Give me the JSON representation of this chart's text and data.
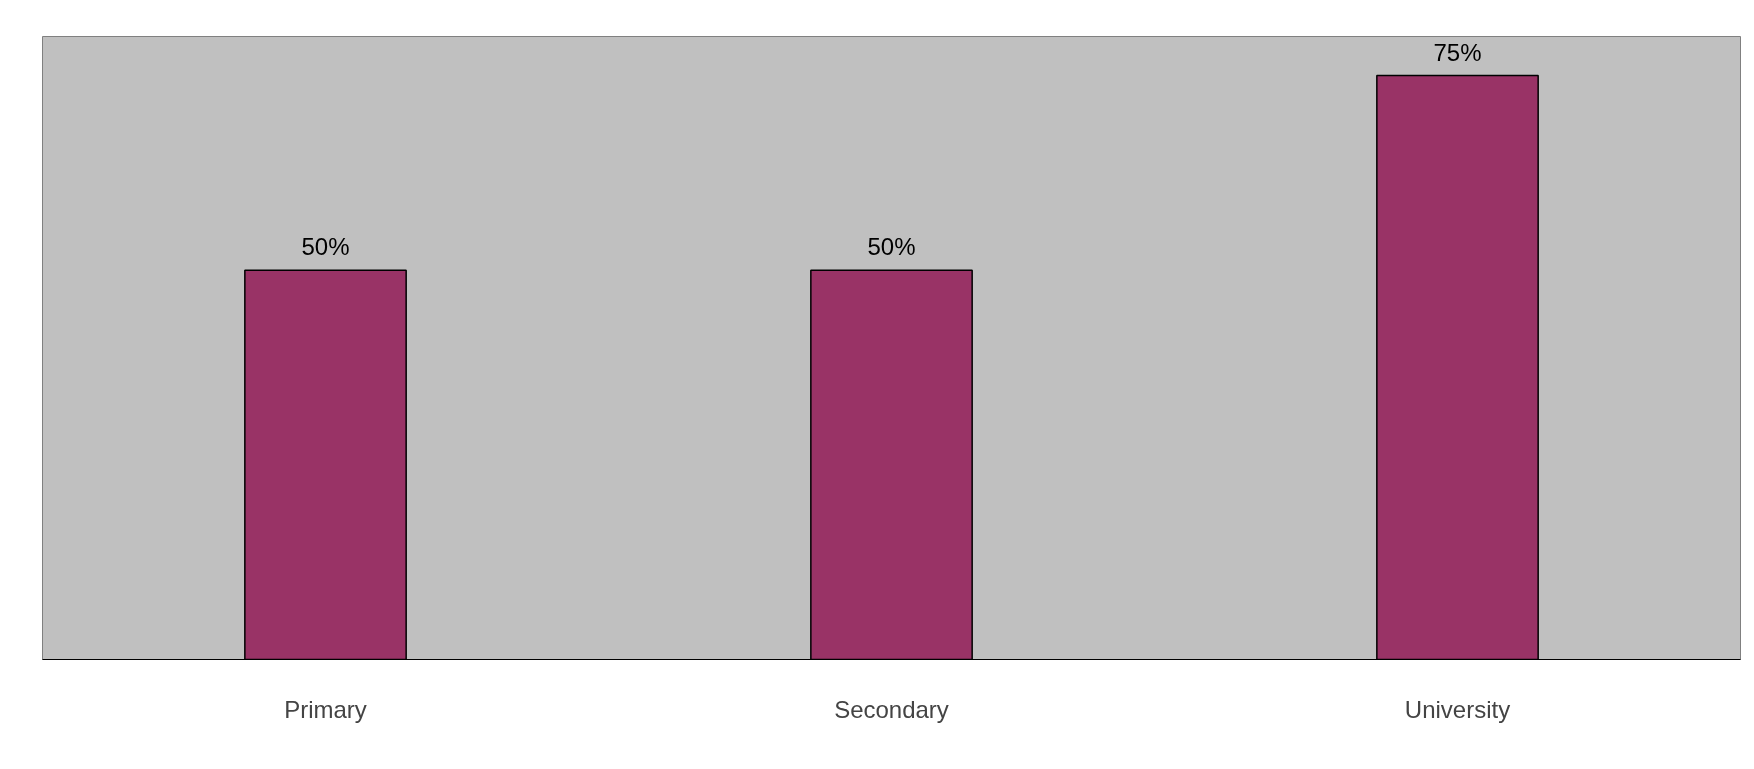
{
  "chart_data": {
    "type": "bar",
    "categories": [
      "Primary",
      "Secondary",
      "University"
    ],
    "values": [
      50,
      50,
      75
    ],
    "color": "#993366",
    "value_labels": [
      "50%",
      "50%",
      "75%"
    ]
  }
}
